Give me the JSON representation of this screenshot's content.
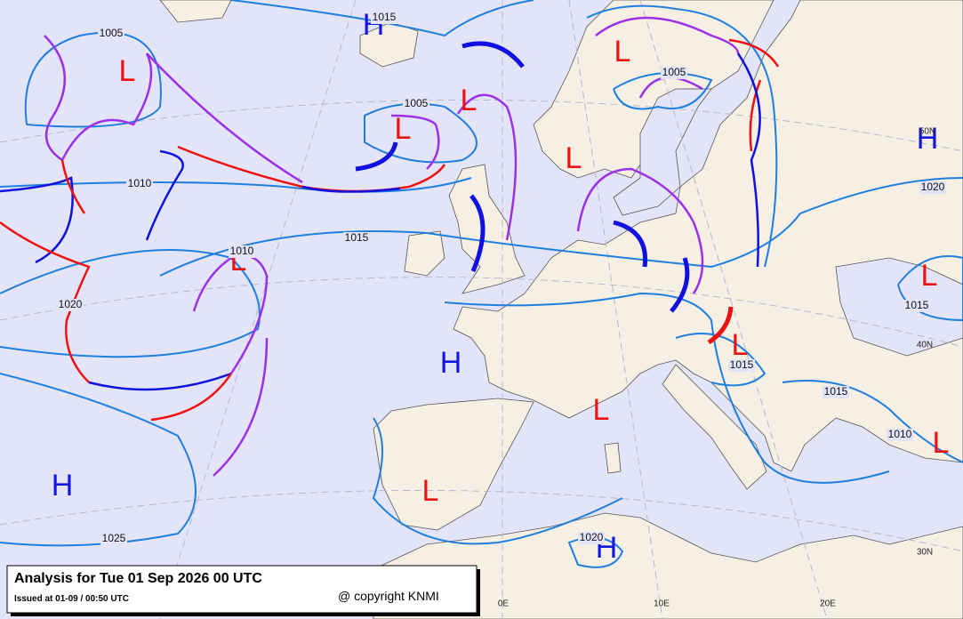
{
  "header": {
    "title": "Analysis for Tue 01 Sep 2026 00 UTC",
    "issued": "Issued at 01-09 / 00:50 UTC",
    "copyright": "@ copyright KNMI"
  },
  "pressure_centers": [
    "H",
    "H",
    "H",
    "H",
    "H",
    "L",
    "L",
    "L",
    "L",
    "L",
    "L",
    "L",
    "L",
    "L",
    "L",
    "L"
  ],
  "isobar_labels": [
    "1005",
    "1015",
    "1005",
    "1005",
    "1010",
    "1015",
    "1010",
    "1020",
    "1020",
    "1015",
    "1015",
    "1015",
    "1010",
    "1020",
    "1025"
  ],
  "grid_labels": [
    "50N",
    "40N",
    "30N",
    "0E",
    "10E",
    "20E"
  ]
}
